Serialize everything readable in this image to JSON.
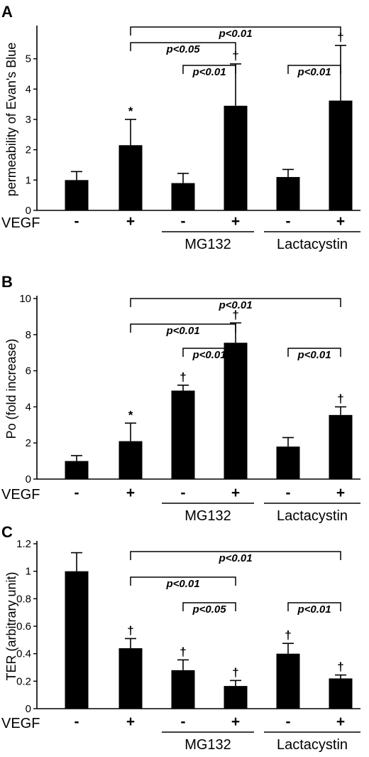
{
  "chart_data": [
    {
      "panel": "A",
      "type": "bar",
      "ylabel": "permeability of Evan's Blue",
      "ylim": [
        0,
        6
      ],
      "yticks": [
        "0",
        "1",
        "2",
        "3",
        "4",
        "5"
      ],
      "categories": [
        "-",
        "+",
        "-",
        "+",
        "-",
        "+"
      ],
      "values": [
        1.0,
        2.15,
        0.9,
        3.45,
        1.1,
        3.62
      ],
      "errors": [
        0.28,
        0.85,
        0.32,
        1.38,
        0.25,
        1.82
      ],
      "markers": [
        "",
        "*",
        "",
        "†",
        "",
        "†"
      ],
      "brackets": [
        {
          "from": 1,
          "to": 5,
          "label": "p<0.01"
        },
        {
          "from": 1,
          "to": 3,
          "label": "p<0.05"
        },
        {
          "from": 2,
          "to": 3,
          "label": "p<0.01"
        },
        {
          "from": 4,
          "to": 5,
          "label": "p<0.01"
        }
      ]
    },
    {
      "panel": "B",
      "type": "bar",
      "ylabel": "Po (fold increase)",
      "ylim": [
        0,
        10
      ],
      "yticks": [
        "0",
        "2",
        "4",
        "6",
        "8",
        "10"
      ],
      "categories": [
        "-",
        "+",
        "-",
        "+",
        "-",
        "+"
      ],
      "values": [
        1.0,
        2.1,
        4.9,
        7.55,
        1.8,
        3.55
      ],
      "errors": [
        0.3,
        1.0,
        0.3,
        1.1,
        0.5,
        0.45
      ],
      "markers": [
        "",
        "*",
        "†",
        "†",
        "",
        "†"
      ],
      "brackets": [
        {
          "from": 1,
          "to": 5,
          "label": "p<0.01"
        },
        {
          "from": 1,
          "to": 3,
          "label": "p<0.01"
        },
        {
          "from": 2,
          "to": 3,
          "label": "p<0.01"
        },
        {
          "from": 4,
          "to": 5,
          "label": "p<0.01"
        }
      ]
    },
    {
      "panel": "C",
      "type": "bar",
      "ylabel": "TER (arbitrary unit)",
      "ylim": [
        0,
        1.2
      ],
      "yticks": [
        "0",
        "0.2",
        "0.4",
        "0.6",
        "0.8",
        "1",
        "1.2"
      ],
      "categories": [
        "-",
        "+",
        "-",
        "+",
        "-",
        "+"
      ],
      "values": [
        1.0,
        0.44,
        0.28,
        0.165,
        0.4,
        0.22
      ],
      "errors": [
        0.135,
        0.07,
        0.075,
        0.04,
        0.075,
        0.025
      ],
      "markers": [
        "",
        "†",
        "†",
        "†",
        "†",
        "†"
      ],
      "brackets": [
        {
          "from": 1,
          "to": 5,
          "label": "p<0.01"
        },
        {
          "from": 1,
          "to": 3,
          "label": "p<0.01"
        },
        {
          "from": 2,
          "to": 3,
          "label": "p<0.05"
        },
        {
          "from": 4,
          "to": 5,
          "label": "p<0.01"
        }
      ]
    }
  ],
  "row_label": "VEGF",
  "groups": [
    "MG132",
    "Lactacystin"
  ]
}
